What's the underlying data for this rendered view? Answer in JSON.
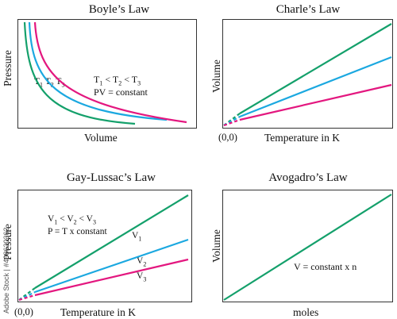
{
  "colors": {
    "green": "#14a06b",
    "blue": "#1ba8e0",
    "pink": "#e3177f",
    "frame": "#333333"
  },
  "boyle": {
    "title": "Boyle’s Law",
    "xlabel": "Volume",
    "ylabel": "Pressure",
    "curve_labels": [
      "T1",
      "T2",
      "T3"
    ],
    "relation": "T1 < T2 < T3",
    "equation": "PV = constant"
  },
  "charles": {
    "title": "Charle’s Law",
    "xlabel": "Temperature in K",
    "ylabel": "Volume",
    "origin": "(0,0)"
  },
  "gaylussac": {
    "title": "Gay-Lussac’s Law",
    "xlabel": "Temperature in K",
    "ylabel": "Pressure",
    "origin": "(0,0)",
    "relation": "V1 < V2 < V3",
    "equation": "P = T x constant",
    "line_labels": [
      "V1",
      "V2",
      "V3"
    ]
  },
  "avogadro": {
    "title": "Avogadro’s Law",
    "xlabel": "moles",
    "ylabel": "Volume",
    "equation": "V = constant x n"
  },
  "watermark": "Adobe Stock | #468630362"
}
